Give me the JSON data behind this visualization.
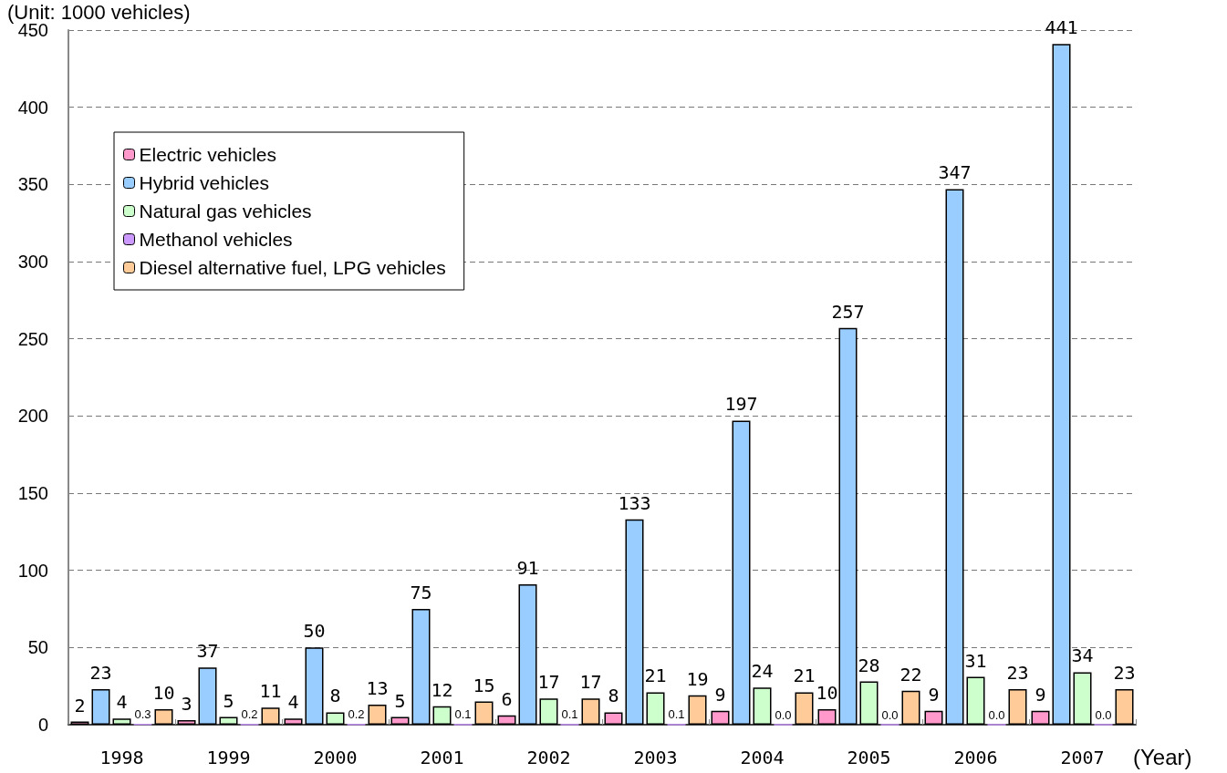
{
  "chart_data": {
    "type": "bar",
    "ylabel": "(Unit: 1000 vehicles)",
    "xlabel": "(Year)",
    "categories": [
      "1998",
      "1999",
      "2000",
      "2001",
      "2002",
      "2003",
      "2004",
      "2005",
      "2006",
      "2007"
    ],
    "series": [
      {
        "name": "Electric vehicles",
        "color": "#ff99cc",
        "values": [
          2,
          3,
          4,
          5,
          6,
          8,
          9,
          10,
          9,
          9
        ]
      },
      {
        "name": "Hybrid vehicles",
        "color": "#99ccff",
        "values": [
          23,
          37,
          50,
          75,
          91,
          133,
          197,
          257,
          347,
          441
        ]
      },
      {
        "name": "Natural gas vehicles",
        "color": "#ccffcc",
        "values": [
          4,
          5,
          8,
          12,
          17,
          21,
          24,
          28,
          31,
          34
        ]
      },
      {
        "name": "Methanol vehicles",
        "color": "#cc99ff",
        "values": [
          0.3,
          0.2,
          0.2,
          0.1,
          0.1,
          0.1,
          0.0,
          0.0,
          0.0,
          0.0
        ],
        "value_labels": [
          "0.3",
          "0.2",
          "0.2",
          "0.1",
          "0.1",
          "0.1",
          "0.0",
          "0.0",
          "0.0",
          "0.0"
        ]
      },
      {
        "name": "Diesel alternative fuel, LPG vehicles",
        "color": "#ffcc99",
        "values": [
          10,
          11,
          13,
          15,
          17,
          19,
          21,
          22,
          23,
          23
        ]
      }
    ],
    "ylim": [
      0,
      450
    ],
    "yticks": [
      0,
      50,
      100,
      150,
      200,
      250,
      300,
      350,
      400,
      450
    ],
    "grid": "y",
    "legend": "top left",
    "data_labels": true
  }
}
